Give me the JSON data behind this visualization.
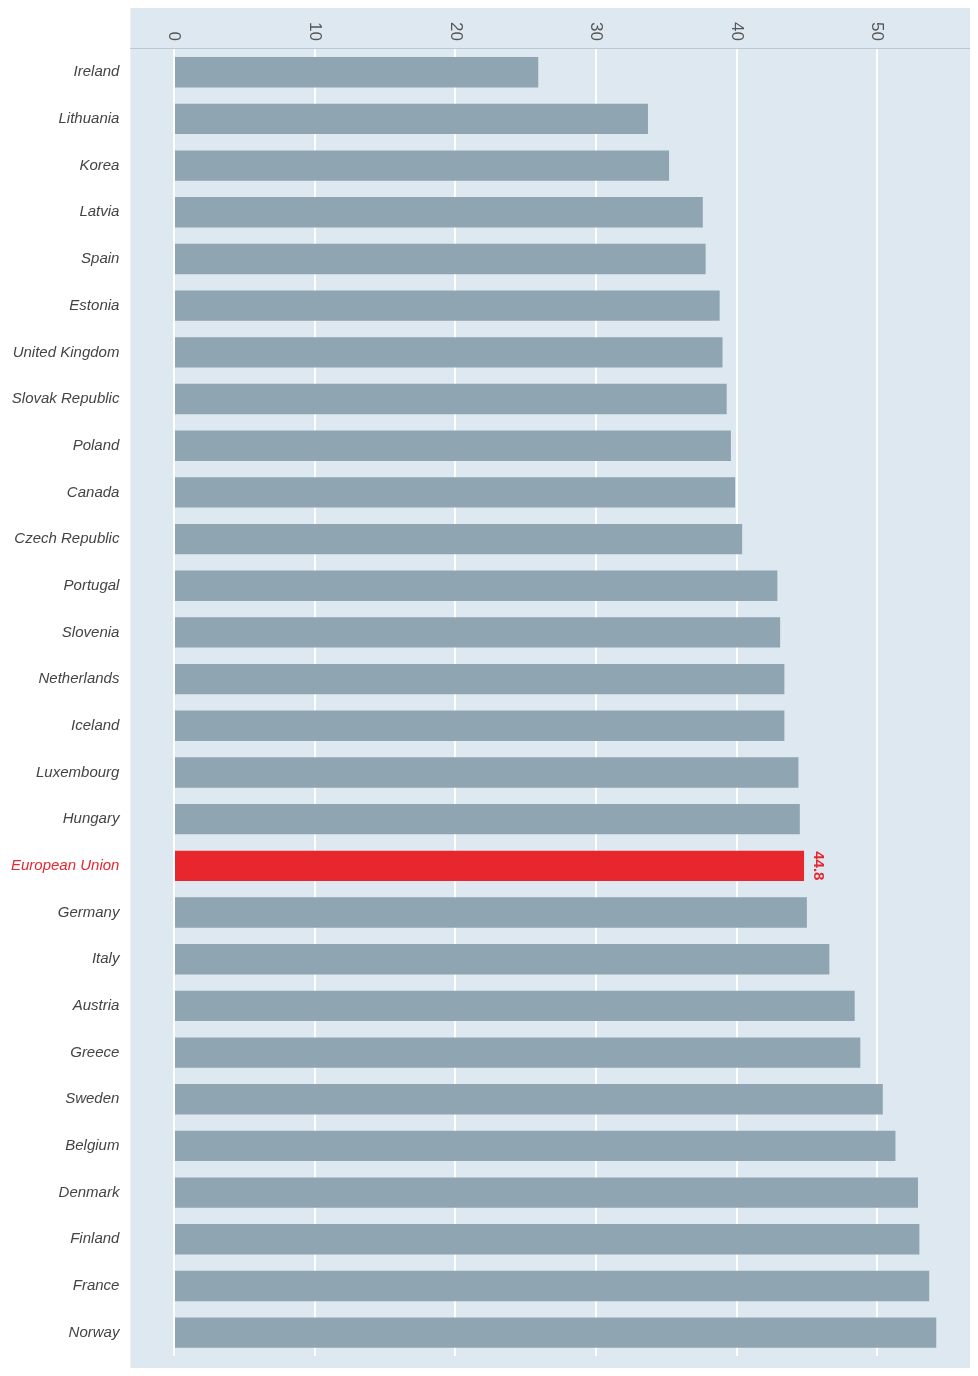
{
  "chart_data": {
    "type": "bar",
    "orientation": "horizontal",
    "categories": [
      "Ireland",
      "Lithuania",
      "Korea",
      "Latvia",
      "Spain",
      "Estonia",
      "United Kingdom",
      "Slovak Republic",
      "Poland",
      "Canada",
      "Czech Republic",
      "Portugal",
      "Slovenia",
      "Netherlands",
      "Iceland",
      "Luxembourg",
      "Hungary",
      "European Union",
      "Germany",
      "Italy",
      "Austria",
      "Greece",
      "Sweden",
      "Belgium",
      "Denmark",
      "Finland",
      "France",
      "Norway"
    ],
    "values": [
      25.9,
      33.7,
      35.2,
      37.6,
      37.8,
      38.8,
      39.0,
      39.3,
      39.6,
      39.9,
      40.4,
      42.9,
      43.1,
      43.4,
      43.4,
      44.4,
      44.5,
      44.8,
      45.0,
      46.6,
      48.4,
      48.8,
      50.4,
      51.3,
      52.9,
      53.0,
      53.7,
      54.2
    ],
    "colors": [
      "#8fa5b2",
      "#8fa5b2",
      "#8fa5b2",
      "#8fa5b2",
      "#8fa5b2",
      "#8fa5b2",
      "#8fa5b2",
      "#8fa5b2",
      "#8fa5b2",
      "#8fa5b2",
      "#8fa5b2",
      "#8fa5b2",
      "#8fa5b2",
      "#8fa5b2",
      "#8fa5b2",
      "#8fa5b2",
      "#8fa5b2",
      "#e8262e",
      "#8fa5b2",
      "#8fa5b2",
      "#8fa5b2",
      "#8fa5b2",
      "#8fa5b2",
      "#8fa5b2",
      "#8fa5b2",
      "#8fa5b2",
      "#8fa5b2",
      "#8fa5b2"
    ],
    "value_labels": [
      null,
      null,
      null,
      null,
      null,
      null,
      null,
      null,
      null,
      null,
      null,
      null,
      null,
      null,
      null,
      null,
      null,
      "44.8",
      null,
      null,
      null,
      null,
      null,
      null,
      null,
      null,
      null,
      null
    ],
    "xlim": [
      -3.1,
      56.6
    ],
    "xticks": [
      0,
      10,
      20,
      30,
      40,
      50
    ],
    "grid": "x",
    "legend": false
  }
}
